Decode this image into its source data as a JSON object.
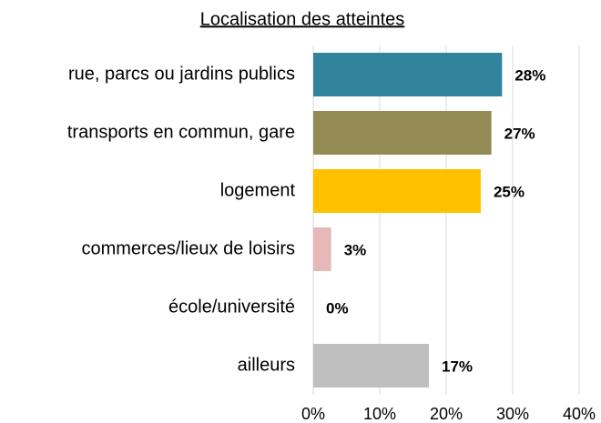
{
  "chart_data": {
    "type": "barh",
    "title": "Localisation des atteintes",
    "categories": [
      "rue, parcs ou jardins publics",
      "transports en commun, gare",
      "logement",
      "commerces/lieux de loisirs",
      "école/université",
      "ailleurs"
    ],
    "values": [
      28.4,
      26.8,
      25.2,
      2.7,
      0,
      17.4
    ],
    "value_labels": [
      "28%",
      "27%",
      "25%",
      "3%",
      "0%",
      "17%"
    ],
    "colors": [
      "#31849b",
      "#948a54",
      "#ffc000",
      "#e6b9b8",
      "#ffffff",
      "#bfbfbf"
    ],
    "xlim": [
      0,
      40
    ],
    "xticks": [
      {
        "value": 0,
        "label": "0%"
      },
      {
        "value": 10,
        "label": "10%"
      },
      {
        "value": 20,
        "label": "20%"
      },
      {
        "value": 30,
        "label": "30%"
      },
      {
        "value": 40,
        "label": "40%"
      }
    ],
    "grid": true
  }
}
